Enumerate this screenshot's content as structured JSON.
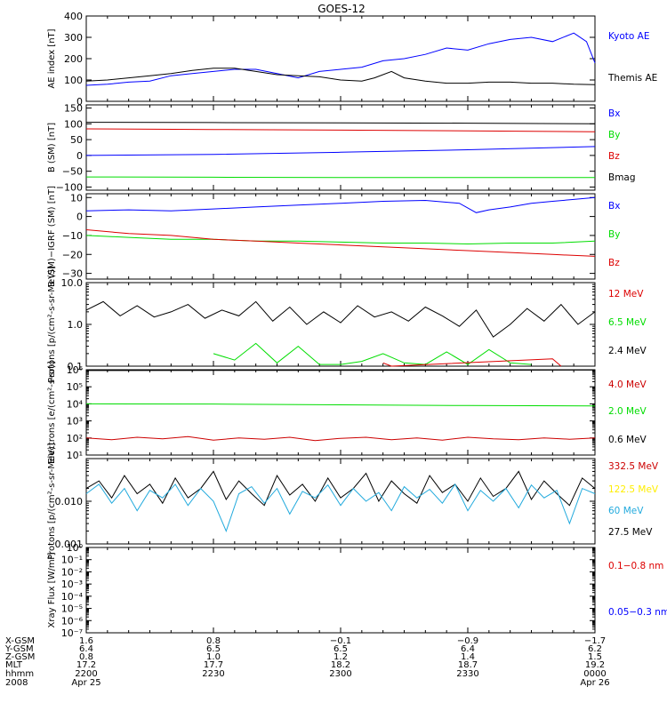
{
  "title": "GOES-12",
  "colors": {
    "black": "#000000",
    "blue": "#0000ff",
    "green": "#00dd00",
    "red": "#dd0000",
    "darkred": "#cc0000",
    "cyan": "#22aadd",
    "yellow": "#ffee00"
  },
  "chart_data": [
    {
      "type": "line",
      "ylabel": "AE index [nT]",
      "yscale": "linear",
      "ylim": [
        0,
        400
      ],
      "yticks": [
        0,
        100,
        200,
        300,
        400
      ],
      "ytick_labels": [
        "0",
        "100",
        "200",
        "300",
        "400"
      ],
      "xlim": [
        0,
        120
      ],
      "series": [
        {
          "name": "Kyoto AE",
          "color": "#0000ff",
          "x": [
            0,
            5,
            10,
            15,
            20,
            25,
            30,
            35,
            40,
            45,
            50,
            55,
            60,
            65,
            70,
            75,
            80,
            85,
            90,
            95,
            100,
            105,
            110,
            115,
            118,
            120
          ],
          "y": [
            75,
            80,
            90,
            95,
            120,
            130,
            140,
            150,
            150,
            130,
            110,
            140,
            150,
            160,
            190,
            200,
            220,
            250,
            240,
            270,
            290,
            300,
            280,
            320,
            280,
            180
          ]
        },
        {
          "name": "Themis AE",
          "color": "#000000",
          "x": [
            0,
            5,
            10,
            15,
            20,
            25,
            30,
            35,
            40,
            45,
            50,
            55,
            60,
            65,
            68,
            72,
            75,
            80,
            85,
            90,
            95,
            100,
            105,
            110,
            115,
            120
          ],
          "y": [
            95,
            100,
            110,
            120,
            130,
            145,
            155,
            155,
            140,
            125,
            120,
            115,
            100,
            95,
            110,
            140,
            110,
            95,
            85,
            85,
            90,
            90,
            85,
            85,
            80,
            78
          ]
        }
      ],
      "legend": [
        "Kyoto AE",
        "Themis AE"
      ],
      "legend_colors": [
        "#0000ff",
        "#000000"
      ]
    },
    {
      "type": "line",
      "ylabel": "B (SM) [nT]",
      "yscale": "linear",
      "ylim": [
        -110,
        160
      ],
      "yticks": [
        -100,
        -50,
        0,
        50,
        100,
        150
      ],
      "ytick_labels": [
        "−100",
        "−50",
        "0",
        "50",
        "100",
        "150"
      ],
      "xlim": [
        0,
        120
      ],
      "series": [
        {
          "name": "Bx",
          "color": "#0000ff",
          "x": [
            0,
            30,
            60,
            90,
            120
          ],
          "y": [
            0,
            3,
            10,
            18,
            28
          ]
        },
        {
          "name": "Bz",
          "color": "#dd0000",
          "x": [
            0,
            30,
            60,
            90,
            120
          ],
          "y": [
            84,
            82,
            80,
            78,
            75
          ]
        },
        {
          "name": "Bmag",
          "color": "#000000",
          "x": [
            0,
            30,
            60,
            90,
            120
          ],
          "y": [
            105,
            104,
            103,
            102,
            100
          ]
        },
        {
          "name": "By",
          "color": "#00dd00",
          "x": [
            0,
            30,
            60,
            90,
            120
          ],
          "y": [
            -68,
            -69,
            -70,
            -70,
            -70
          ]
        }
      ],
      "legend": [
        "Bx",
        "By",
        "Bz",
        "Bmag"
      ],
      "legend_colors": [
        "#0000ff",
        "#00dd00",
        "#dd0000",
        "#000000"
      ]
    },
    {
      "type": "line",
      "ylabel": "B (SM)−IGRF (SM) [nT]",
      "yscale": "linear",
      "ylim": [
        -33,
        12
      ],
      "yticks": [
        -30,
        -20,
        -10,
        0,
        10
      ],
      "ytick_labels": [
        "−30",
        "−20",
        "−10",
        "0",
        "10"
      ],
      "xlim": [
        0,
        120
      ],
      "series": [
        {
          "name": "Bx",
          "color": "#0000ff",
          "x": [
            0,
            10,
            20,
            30,
            40,
            50,
            60,
            70,
            80,
            88,
            92,
            95,
            100,
            105,
            110,
            115,
            120
          ],
          "y": [
            3,
            3.5,
            3,
            4,
            5,
            6,
            7,
            8,
            8.5,
            7,
            2,
            3.5,
            5,
            7,
            8,
            9,
            10
          ]
        },
        {
          "name": "By",
          "color": "#00dd00",
          "x": [
            0,
            10,
            20,
            30,
            40,
            50,
            60,
            70,
            80,
            90,
            100,
            110,
            120
          ],
          "y": [
            -10,
            -11,
            -12,
            -12,
            -13,
            -13,
            -13.5,
            -14,
            -14,
            -14.5,
            -14,
            -14,
            -13
          ]
        },
        {
          "name": "Bz",
          "color": "#dd0000",
          "x": [
            0,
            10,
            20,
            30,
            40,
            50,
            60,
            70,
            80,
            90,
            100,
            110,
            120
          ],
          "y": [
            -7,
            -9,
            -10,
            -12,
            -13,
            -14,
            -15,
            -16,
            -17,
            -18,
            -19,
            -20,
            -21
          ]
        }
      ],
      "legend": [
        "Bx",
        "By",
        "Bz"
      ],
      "legend_colors": [
        "#0000ff",
        "#00dd00",
        "#dd0000"
      ]
    },
    {
      "type": "line",
      "ylabel": "Protons [p/(cm²-s-sr-MeV)]",
      "yscale": "log",
      "ylim": [
        0.1,
        10
      ],
      "yticks": [
        0.1,
        1,
        10
      ],
      "ytick_labels": [
        "0.1",
        "1.0",
        "10.0"
      ],
      "xlim": [
        0,
        120
      ],
      "series": [
        {
          "name": "2.4 MeV",
          "color": "#000000",
          "x": [
            0,
            4,
            8,
            12,
            16,
            20,
            24,
            28,
            32,
            36,
            40,
            44,
            48,
            52,
            56,
            60,
            64,
            68,
            72,
            76,
            80,
            84,
            88,
            92,
            96,
            100,
            104,
            108,
            112,
            116,
            120
          ],
          "y": [
            2.2,
            3.5,
            1.6,
            2.8,
            1.5,
            2.0,
            3.0,
            1.4,
            2.2,
            1.6,
            3.5,
            1.2,
            2.6,
            1.0,
            2.0,
            1.1,
            2.8,
            1.5,
            2.0,
            1.2,
            2.6,
            1.6,
            0.9,
            2.2,
            0.5,
            1.0,
            2.4,
            1.2,
            3.0,
            1.0,
            2.0
          ]
        },
        {
          "name": "6.5 MeV",
          "color": "#00dd00",
          "x": [
            30,
            35,
            40,
            45,
            50,
            55,
            60,
            65,
            70,
            75,
            80,
            85,
            90,
            95,
            100,
            105
          ],
          "y": [
            0.2,
            0.14,
            0.35,
            0.12,
            0.3,
            0.11,
            0.11,
            0.13,
            0.2,
            0.12,
            0.11,
            0.22,
            0.11,
            0.25,
            0.12,
            0.11
          ]
        },
        {
          "name": "12 MeV",
          "color": "#dd0000",
          "x": [
            70,
            72,
            110,
            112
          ],
          "y": [
            0.12,
            0.1,
            0.15,
            0.1
          ]
        }
      ],
      "legend": [
        "12 MeV",
        "6.5 MeV",
        "2.4 MeV"
      ],
      "legend_colors": [
        "#dd0000",
        "#00dd00",
        "#000000"
      ]
    },
    {
      "type": "line",
      "ylabel": "Electrons [e/(cm²-s-sr)]",
      "yscale": "log",
      "ylim": [
        10,
        1000000
      ],
      "yticks": [
        10,
        100,
        1000,
        10000,
        100000,
        1000000
      ],
      "ytick_labels": [
        "10¹",
        "10²",
        "10³",
        "10⁴",
        "10⁵",
        "10⁶"
      ],
      "xlim": [
        0,
        120
      ],
      "series": [
        {
          "name": "0.6 MeV",
          "color": "#000000",
          "x": [
            0,
            60,
            120
          ],
          "y": [
            900000,
            920000,
            950000
          ]
        },
        {
          "name": "2.0 MeV",
          "color": "#00dd00",
          "x": [
            0,
            30,
            60,
            90,
            120
          ],
          "y": [
            10000,
            9800,
            8800,
            8000,
            7500
          ]
        },
        {
          "name": "4.0 MeV",
          "color": "#cc0000",
          "x": [
            0,
            6,
            12,
            18,
            24,
            30,
            36,
            42,
            48,
            54,
            60,
            66,
            72,
            78,
            84,
            90,
            96,
            102,
            108,
            114,
            120
          ],
          "y": [
            100,
            80,
            110,
            90,
            120,
            75,
            100,
            85,
            110,
            70,
            95,
            110,
            80,
            100,
            75,
            110,
            90,
            80,
            100,
            85,
            100
          ]
        }
      ],
      "legend": [
        "4.0 MeV",
        "2.0 MeV",
        "0.6 MeV"
      ],
      "legend_colors": [
        "#cc0000",
        "#00dd00",
        "#000000"
      ]
    },
    {
      "type": "line",
      "ylabel": "Protons [p/(cm²-s-sr-MeV)]",
      "yscale": "log",
      "ylim": [
        0.001,
        0.1
      ],
      "yticks": [
        0.001,
        0.01
      ],
      "ytick_labels": [
        "0.001",
        "0.010"
      ],
      "xlim": [
        0,
        120
      ],
      "series": [
        {
          "name": "27.5 MeV",
          "color": "#000000",
          "x": [
            0,
            3,
            6,
            9,
            12,
            15,
            18,
            21,
            24,
            27,
            30,
            33,
            36,
            39,
            42,
            45,
            48,
            51,
            54,
            57,
            60,
            63,
            66,
            69,
            72,
            75,
            78,
            81,
            84,
            87,
            90,
            93,
            96,
            99,
            102,
            105,
            108,
            111,
            114,
            117,
            120
          ],
          "y": [
            0.02,
            0.03,
            0.012,
            0.04,
            0.015,
            0.025,
            0.009,
            0.035,
            0.012,
            0.02,
            0.05,
            0.011,
            0.03,
            0.015,
            0.008,
            0.04,
            0.014,
            0.025,
            0.01,
            0.035,
            0.012,
            0.02,
            0.045,
            0.01,
            0.03,
            0.015,
            0.009,
            0.04,
            0.016,
            0.025,
            0.01,
            0.035,
            0.013,
            0.02,
            0.05,
            0.011,
            0.03,
            0.015,
            0.008,
            0.035,
            0.02
          ]
        },
        {
          "name": "60 MeV",
          "color": "#22aadd",
          "x": [
            0,
            3,
            6,
            9,
            12,
            15,
            18,
            21,
            24,
            27,
            30,
            33,
            36,
            39,
            42,
            45,
            48,
            51,
            54,
            57,
            60,
            63,
            66,
            69,
            72,
            75,
            78,
            81,
            84,
            87,
            90,
            93,
            96,
            99,
            102,
            105,
            108,
            111,
            114,
            117,
            120
          ],
          "y": [
            0.015,
            0.025,
            0.009,
            0.02,
            0.006,
            0.018,
            0.012,
            0.025,
            0.008,
            0.02,
            0.01,
            0.002,
            0.015,
            0.022,
            0.009,
            0.02,
            0.005,
            0.017,
            0.012,
            0.024,
            0.008,
            0.02,
            0.01,
            0.016,
            0.006,
            0.022,
            0.012,
            0.019,
            0.009,
            0.025,
            0.006,
            0.018,
            0.01,
            0.02,
            0.007,
            0.024,
            0.012,
            0.018,
            0.003,
            0.02,
            0.015
          ]
        }
      ],
      "legend": [
        "332.5 MeV",
        "122.5 MeV",
        "60 MeV",
        "27.5 MeV"
      ],
      "legend_colors": [
        "#cc0000",
        "#ffee00",
        "#22aadd",
        "#000000"
      ]
    },
    {
      "type": "line",
      "ylabel": "Xray Flux [W/m²]",
      "yscale": "log",
      "ylim": [
        1e-07,
        1
      ],
      "yticks": [
        1e-07,
        1e-06,
        1e-05,
        0.0001,
        0.001,
        0.01,
        0.1,
        1
      ],
      "ytick_labels": [
        "10⁻⁷",
        "10⁻⁶",
        "10⁻⁵",
        "10⁻⁴",
        "10⁻³",
        "10⁻²",
        "10⁻¹",
        "10⁰"
      ],
      "xlim": [
        0,
        120
      ],
      "series": [],
      "legend": [
        "0.1−0.8 nm",
        "0.05−0.3 nm"
      ],
      "legend_colors": [
        "#dd0000",
        "#0000ff"
      ]
    }
  ],
  "xaxis": {
    "tick_x": [
      0,
      30,
      60,
      90,
      120
    ],
    "row_labels": [
      "X-GSM",
      "Y-GSM",
      "Z-GSM",
      "MLT",
      "hhmm",
      "2008"
    ],
    "rows": [
      [
        "1.6",
        "0.8",
        "−0.1",
        "−0.9",
        "−1.7"
      ],
      [
        "6.4",
        "6.5",
        "6.5",
        "6.4",
        "6.2"
      ],
      [
        "0.8",
        "1.0",
        "1.2",
        "1.4",
        "1.5"
      ],
      [
        "17.2",
        "17.7",
        "18.2",
        "18.7",
        "19.2"
      ],
      [
        "2200",
        "2230",
        "2300",
        "2330",
        "0000"
      ],
      [
        "Apr 25",
        "",
        "",
        "",
        "Apr 26"
      ]
    ]
  }
}
